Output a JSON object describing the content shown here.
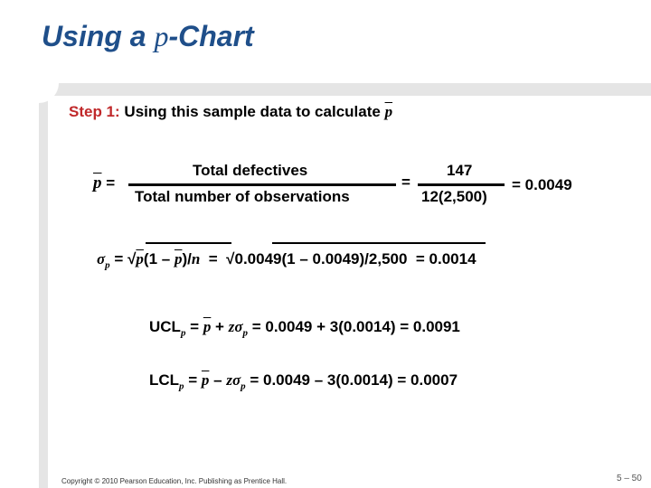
{
  "title": {
    "pre": "Using a ",
    "var": "p",
    "post": "-Chart"
  },
  "step": {
    "label": "Step 1:",
    "text": " Using this sample data to calculate ",
    "var": "p"
  },
  "pbar_eq": {
    "lhs_var": "p",
    "lhs_eq": "=",
    "num1": "Total defectives",
    "den1": "Total number of observations",
    "eq2": "=",
    "num2": "147",
    "den2": "12(2,500)",
    "result": "= 0.0049"
  },
  "sigma_eq": {
    "sym": "σ",
    "sub": "p",
    "eq1": "=",
    "radical1": "√",
    "f_var": "p",
    "f_mid": "(1 – ",
    "f_var2": "p",
    "f_mid2": ")/",
    "f_n": "n",
    "eq2": "=",
    "radical2": "√",
    "value_expr": "0.0049(1 – 0.0049)/2,500",
    "result": "= 0.0014"
  },
  "ucl": {
    "label": "UCL",
    "sub": "p",
    "eq": " = ",
    "var": "p",
    "op": " + ",
    "z": "z",
    "sigma": "σ",
    "sigma_sub": "p",
    "expr": " = 0.0049 + 3(0.0014) = 0.0091"
  },
  "lcl": {
    "label": "LCL",
    "sub": "p",
    "eq": " = ",
    "var": "p",
    "op": " – ",
    "z": "z",
    "sigma": "σ",
    "sigma_sub": "p",
    "expr": " = 0.0049 – 3(0.0014) = 0.0007"
  },
  "footer": {
    "copyright": "Copyright © 2010 Pearson Education, Inc. Publishing as Prentice Hall.",
    "page": "5 – 50"
  },
  "colors": {
    "title": "#1f4f8a",
    "step_label": "#c0282a",
    "panel": "#e5e5e5"
  }
}
